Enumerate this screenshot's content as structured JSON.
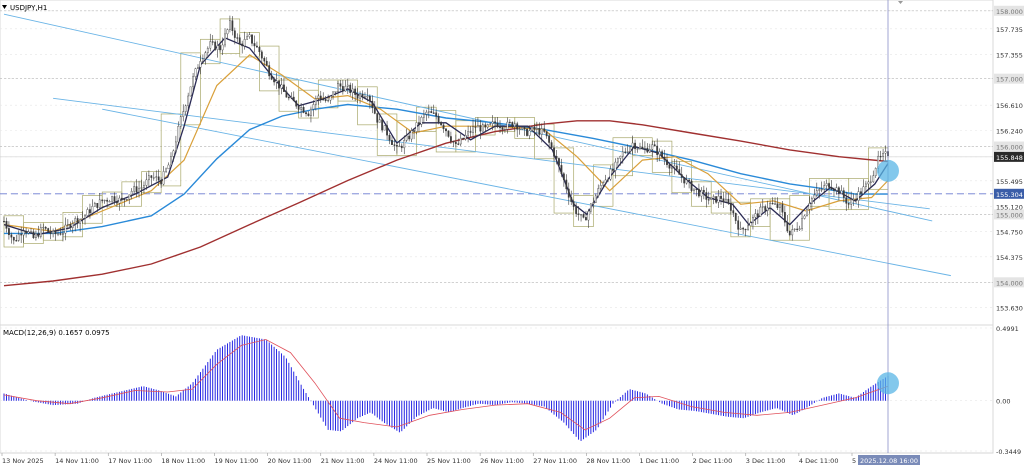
{
  "header": {
    "symbol_label": "USDJPY,H1"
  },
  "macd_panel": {
    "label": "MACD(12,26,9) 0.1657 0.0975"
  },
  "colors": {
    "candle": "#3a3a3a",
    "fast_ma": "#2a2a55",
    "mid_ma": "#d9a03a",
    "slow_ma": "#2a8ad8",
    "long_ma": "#a03030",
    "channel": "#6ab4e6",
    "macd_hist": "#1010e0",
    "macd_signal": "#e0505a",
    "highlight": "#5ab6e6",
    "boxes": "#a8a86a",
    "current_price_badge": "#2a2a2a",
    "level_badge": "#3a5da8",
    "time_badge": "#7a8bb8"
  },
  "chart_data": [
    {
      "type": "candlestick",
      "symbol": "USDJPY",
      "timeframe": "H1",
      "ylim": [
        153.43,
        158.1
      ],
      "y_ticks": [
        "158.000",
        "157.735",
        "157.355",
        "157.000",
        "156.610",
        "156.240",
        "156.000",
        "155.848",
        "155.495",
        "155.304",
        "155.120",
        "155.000",
        "154.750",
        "154.375",
        "154.000",
        "153.630"
      ],
      "x_ticks": [
        "13 Nov 2025",
        "14 Nov 11:00",
        "17 Nov 11:00",
        "18 Nov 11:00",
        "19 Nov 11:00",
        "20 Nov 11:00",
        "21 Nov 11:00",
        "24 Nov 11:00",
        "25 Nov 11:00",
        "26 Nov 11:00",
        "27 Nov 11:00",
        "28 Nov 11:00",
        "1 Dec 11:00",
        "2 Dec 11:00",
        "3 Dec 11:00",
        "4 Dec 11:00",
        "5 Dec 11:00"
      ],
      "current_time_label": "2025.12.08 16:00",
      "current_price": 155.848,
      "horizontal_levels": [
        158.0,
        157.0,
        156.0,
        155.0,
        154.0
      ],
      "dashed_level": 155.304,
      "price_path": [
        [
          0,
          154.9
        ],
        [
          6,
          154.6
        ],
        [
          12,
          154.8
        ],
        [
          18,
          154.65
        ],
        [
          24,
          154.8
        ],
        [
          30,
          154.7
        ],
        [
          36,
          154.75
        ],
        [
          42,
          154.9
        ],
        [
          48,
          154.95
        ],
        [
          54,
          155.1
        ],
        [
          60,
          155.2
        ],
        [
          66,
          155.25
        ],
        [
          72,
          155.2
        ],
        [
          78,
          155.35
        ],
        [
          84,
          155.4
        ],
        [
          90,
          155.55
        ],
        [
          96,
          155.5
        ],
        [
          102,
          155.8
        ],
        [
          108,
          156.4
        ],
        [
          114,
          156.9
        ],
        [
          120,
          157.3
        ],
        [
          126,
          157.5
        ],
        [
          132,
          157.45
        ],
        [
          138,
          157.8
        ],
        [
          144,
          157.5
        ],
        [
          150,
          157.6
        ],
        [
          156,
          157.4
        ],
        [
          162,
          157.1
        ],
        [
          168,
          156.9
        ],
        [
          174,
          156.7
        ],
        [
          180,
          156.6
        ],
        [
          186,
          156.5
        ],
        [
          192,
          156.75
        ],
        [
          198,
          156.65
        ],
        [
          204,
          156.9
        ],
        [
          210,
          156.85
        ],
        [
          216,
          156.75
        ],
        [
          222,
          156.8
        ],
        [
          228,
          156.4
        ],
        [
          234,
          156.2
        ],
        [
          240,
          155.95
        ],
        [
          246,
          156.1
        ],
        [
          252,
          156.3
        ],
        [
          258,
          156.5
        ],
        [
          264,
          156.45
        ],
        [
          270,
          156.25
        ],
        [
          276,
          156.0
        ],
        [
          282,
          156.15
        ],
        [
          288,
          156.3
        ],
        [
          294,
          156.25
        ],
        [
          300,
          156.35
        ],
        [
          306,
          156.3
        ],
        [
          312,
          156.35
        ],
        [
          318,
          156.2
        ],
        [
          324,
          156.25
        ],
        [
          330,
          156.2
        ],
        [
          336,
          155.9
        ],
        [
          342,
          155.5
        ],
        [
          348,
          155.1
        ],
        [
          354,
          154.9
        ],
        [
          360,
          155.2
        ],
        [
          366,
          155.5
        ],
        [
          372,
          155.65
        ],
        [
          378,
          155.9
        ],
        [
          384,
          156.05
        ],
        [
          390,
          155.95
        ],
        [
          396,
          156.0
        ],
        [
          402,
          155.85
        ],
        [
          408,
          155.7
        ],
        [
          414,
          155.55
        ],
        [
          420,
          155.4
        ],
        [
          426,
          155.3
        ],
        [
          432,
          155.2
        ],
        [
          438,
          155.25
        ],
        [
          444,
          155.1
        ],
        [
          450,
          154.75
        ],
        [
          456,
          154.9
        ],
        [
          462,
          155.05
        ],
        [
          468,
          155.15
        ],
        [
          474,
          155.1
        ],
        [
          480,
          154.7
        ],
        [
          486,
          154.85
        ],
        [
          492,
          155.2
        ],
        [
          498,
          155.35
        ],
        [
          504,
          155.45
        ],
        [
          510,
          155.35
        ],
        [
          516,
          155.15
        ],
        [
          522,
          155.3
        ],
        [
          528,
          155.45
        ],
        [
          534,
          155.8
        ],
        [
          540,
          155.9
        ]
      ],
      "series": [
        {
          "key": "long_ma",
          "points": [
            [
              0,
              153.95
            ],
            [
              30,
              154.02
            ],
            [
              60,
              154.12
            ],
            [
              90,
              154.27
            ],
            [
              120,
              154.52
            ],
            [
              150,
              154.85
            ],
            [
              180,
              155.17
            ],
            [
              210,
              155.5
            ],
            [
              240,
              155.8
            ],
            [
              270,
              156.05
            ],
            [
              300,
              156.22
            ],
            [
              330,
              156.33
            ],
            [
              350,
              156.38
            ],
            [
              370,
              156.38
            ],
            [
              390,
              156.32
            ],
            [
              420,
              156.2
            ],
            [
              450,
              156.08
            ],
            [
              480,
              155.95
            ],
            [
              510,
              155.85
            ],
            [
              540,
              155.78
            ]
          ]
        },
        {
          "key": "slow_ma",
          "points": [
            [
              0,
              154.72
            ],
            [
              30,
              154.72
            ],
            [
              60,
              154.82
            ],
            [
              90,
              154.98
            ],
            [
              110,
              155.3
            ],
            [
              130,
              155.82
            ],
            [
              150,
              156.25
            ],
            [
              170,
              156.45
            ],
            [
              190,
              156.55
            ],
            [
              210,
              156.62
            ],
            [
              240,
              156.55
            ],
            [
              270,
              156.42
            ],
            [
              300,
              156.35
            ],
            [
              330,
              156.25
            ],
            [
              360,
              156.12
            ],
            [
              390,
              155.97
            ],
            [
              420,
              155.8
            ],
            [
              450,
              155.6
            ],
            [
              480,
              155.45
            ],
            [
              500,
              155.38
            ],
            [
              520,
              155.3
            ],
            [
              540,
              155.3
            ]
          ]
        },
        {
          "key": "mid_ma",
          "points": [
            [
              0,
              154.85
            ],
            [
              30,
              154.75
            ],
            [
              60,
              155.05
            ],
            [
              90,
              155.35
            ],
            [
              110,
              155.8
            ],
            [
              130,
              156.9
            ],
            [
              150,
              157.35
            ],
            [
              170,
              157.05
            ],
            [
              190,
              156.7
            ],
            [
              210,
              156.75
            ],
            [
              230,
              156.55
            ],
            [
              250,
              156.2
            ],
            [
              270,
              156.3
            ],
            [
              300,
              156.3
            ],
            [
              330,
              156.25
            ],
            [
              350,
              155.85
            ],
            [
              370,
              155.35
            ],
            [
              390,
              155.8
            ],
            [
              410,
              155.85
            ],
            [
              430,
              155.6
            ],
            [
              450,
              155.15
            ],
            [
              470,
              155.2
            ],
            [
              490,
              155.05
            ],
            [
              510,
              155.2
            ],
            [
              530,
              155.25
            ],
            [
              540,
              155.5
            ]
          ]
        },
        {
          "key": "fast_ma",
          "points": [
            [
              0,
              154.85
            ],
            [
              20,
              154.7
            ],
            [
              40,
              154.8
            ],
            [
              60,
              155.1
            ],
            [
              80,
              155.3
            ],
            [
              100,
              155.55
            ],
            [
              110,
              156.3
            ],
            [
              120,
              157.2
            ],
            [
              135,
              157.6
            ],
            [
              150,
              157.45
            ],
            [
              165,
              157.0
            ],
            [
              180,
              156.6
            ],
            [
              195,
              156.7
            ],
            [
              210,
              156.85
            ],
            [
              225,
              156.65
            ],
            [
              240,
              156.05
            ],
            [
              255,
              156.35
            ],
            [
              270,
              156.35
            ],
            [
              285,
              156.1
            ],
            [
              300,
              156.3
            ],
            [
              320,
              156.3
            ],
            [
              335,
              155.95
            ],
            [
              348,
              155.15
            ],
            [
              356,
              155.0
            ],
            [
              370,
              155.55
            ],
            [
              385,
              156.0
            ],
            [
              400,
              155.9
            ],
            [
              415,
              155.55
            ],
            [
              430,
              155.25
            ],
            [
              445,
              155.15
            ],
            [
              455,
              154.85
            ],
            [
              468,
              155.1
            ],
            [
              480,
              154.85
            ],
            [
              492,
              155.15
            ],
            [
              505,
              155.4
            ],
            [
              520,
              155.2
            ],
            [
              532,
              155.45
            ],
            [
              540,
              155.75
            ]
          ]
        },
        {
          "key": "channel_upper",
          "points": [
            [
              0,
              157.95
            ],
            [
              540,
              155.05
            ]
          ]
        },
        {
          "key": "channel_mid",
          "points": [
            [
              30,
              156.71
            ],
            [
              540,
              155.16
            ]
          ]
        },
        {
          "key": "channel_lower",
          "points": [
            [
              60,
              156.55
            ],
            [
              540,
              154.28
            ]
          ]
        }
      ]
    },
    {
      "type": "bar",
      "indicator": "MACD",
      "params": [
        12,
        26,
        9
      ],
      "macd_value": 0.1657,
      "signal_value": 0.0975,
      "ylim": [
        -0.3449,
        0.4991
      ],
      "y_ticks": [
        "0.4991",
        "0.00",
        "-0.3449"
      ],
      "histogram_path": [
        [
          0,
          0.05
        ],
        [
          15,
          0.0
        ],
        [
          30,
          -0.03
        ],
        [
          45,
          -0.02
        ],
        [
          55,
          0.02
        ],
        [
          70,
          0.06
        ],
        [
          85,
          0.1
        ],
        [
          95,
          0.07
        ],
        [
          105,
          0.03
        ],
        [
          115,
          0.12
        ],
        [
          130,
          0.35
        ],
        [
          145,
          0.45
        ],
        [
          160,
          0.42
        ],
        [
          172,
          0.3
        ],
        [
          182,
          0.1
        ],
        [
          190,
          -0.05
        ],
        [
          198,
          -0.2
        ],
        [
          206,
          -0.21
        ],
        [
          216,
          -0.12
        ],
        [
          224,
          -0.08
        ],
        [
          232,
          -0.15
        ],
        [
          242,
          -0.22
        ],
        [
          252,
          -0.11
        ],
        [
          262,
          -0.05
        ],
        [
          272,
          -0.08
        ],
        [
          280,
          -0.05
        ],
        [
          290,
          -0.02
        ],
        [
          300,
          -0.03
        ],
        [
          310,
          -0.01
        ],
        [
          320,
          -0.02
        ],
        [
          330,
          -0.04
        ],
        [
          342,
          -0.15
        ],
        [
          352,
          -0.28
        ],
        [
          362,
          -0.2
        ],
        [
          372,
          -0.02
        ],
        [
          382,
          0.08
        ],
        [
          392,
          0.05
        ],
        [
          402,
          -0.02
        ],
        [
          412,
          -0.06
        ],
        [
          422,
          -0.07
        ],
        [
          432,
          -0.09
        ],
        [
          442,
          -0.11
        ],
        [
          452,
          -0.12
        ],
        [
          462,
          -0.08
        ],
        [
          472,
          -0.05
        ],
        [
          482,
          -0.1
        ],
        [
          490,
          -0.05
        ],
        [
          500,
          0.02
        ],
        [
          510,
          0.05
        ],
        [
          520,
          0.02
        ],
        [
          530,
          0.1
        ],
        [
          540,
          0.17
        ]
      ],
      "signal_path": [
        [
          0,
          0.04
        ],
        [
          20,
          0.0
        ],
        [
          40,
          -0.02
        ],
        [
          60,
          0.02
        ],
        [
          80,
          0.07
        ],
        [
          100,
          0.06
        ],
        [
          115,
          0.08
        ],
        [
          130,
          0.25
        ],
        [
          145,
          0.38
        ],
        [
          160,
          0.42
        ],
        [
          175,
          0.33
        ],
        [
          190,
          0.12
        ],
        [
          205,
          -0.12
        ],
        [
          220,
          -0.15
        ],
        [
          240,
          -0.18
        ],
        [
          260,
          -0.1
        ],
        [
          280,
          -0.06
        ],
        [
          300,
          -0.03
        ],
        [
          320,
          -0.02
        ],
        [
          340,
          -0.08
        ],
        [
          355,
          -0.2
        ],
        [
          370,
          -0.12
        ],
        [
          385,
          0.02
        ],
        [
          400,
          0.03
        ],
        [
          420,
          -0.04
        ],
        [
          440,
          -0.08
        ],
        [
          460,
          -0.1
        ],
        [
          480,
          -0.08
        ],
        [
          500,
          -0.03
        ],
        [
          520,
          0.02
        ],
        [
          540,
          0.1
        ]
      ]
    }
  ]
}
